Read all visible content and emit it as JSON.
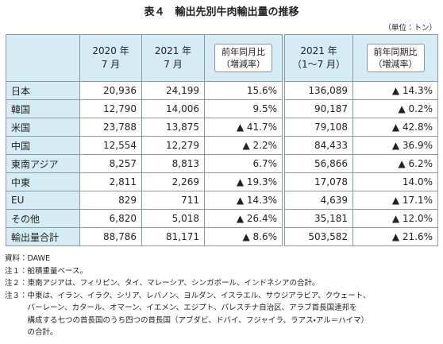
{
  "title": "表４　輸出先別牛肉輸出量の推移",
  "unit": "（単位：トン）",
  "table": {
    "headers": [
      [],
      [
        "2020 年",
        "7 月"
      ],
      [
        "2021 年",
        "7 月"
      ],
      [
        "前年同月比",
        "（増減率）"
      ],
      [
        "2021 年",
        "（1～7 月）"
      ],
      [
        "前年同期比",
        "（増減率）"
      ]
    ],
    "rows": [
      [
        "日本",
        "20,936",
        "24,199",
        "15.6%",
        "136,089",
        "▲ 14.3%"
      ],
      [
        "韓国",
        "12,790",
        "14,006",
        "9.5%",
        "90,187",
        "▲ 0.2%"
      ],
      [
        "米国",
        "23,788",
        "13,875",
        "▲ 41.7%",
        "79,108",
        "▲ 42.8%"
      ],
      [
        "中国",
        "12,554",
        "12,279",
        "▲ 2.2%",
        "84,433",
        "▲ 36.9%"
      ],
      [
        "東南アジア",
        "8,257",
        "8,813",
        "6.7%",
        "56,866",
        "▲ 6.2%"
      ],
      [
        "中東",
        "2,811",
        "2,269",
        "▲ 19.3%",
        "17,078",
        "14.0%"
      ],
      [
        "EU",
        "829",
        "711",
        "▲ 14.3%",
        "4,639",
        "▲ 17.1%"
      ],
      [
        "その他",
        "6,820",
        "5,018",
        "▲ 26.4%",
        "35,181",
        "▲ 12.0%"
      ],
      [
        "輸出量合計",
        "88,786",
        "81,171",
        "▲ 8.6%",
        "503,582",
        "▲ 21.6%"
      ]
    ]
  },
  "notes": [
    {
      "label": "資料：",
      "lines": [
        "DAWE"
      ]
    },
    {
      "label": "注１：",
      "lines": [
        "船積重量ベース。"
      ]
    },
    {
      "label": "注２：",
      "lines": [
        "東南アジアは、フィリピン、タイ、マレーシア、シンガポール、インドネシアの合計。"
      ]
    },
    {
      "label": "注３：",
      "lines": [
        "中東は、イラン、イラク、シリア、レバノン、ヨルダン、イスラエル、サウジアラビア、クウェート、",
        "バーレーン、カタール、オマーン、イエメン、エジプト、パレスチナ自治区、アラブ首長国連邦を",
        "構成する七つの首長国のうち四つの首長国（アブダビ、ドバイ、フジャイラ、ラアス・アル＝ハイマ）",
        "の合計。"
      ]
    }
  ]
}
